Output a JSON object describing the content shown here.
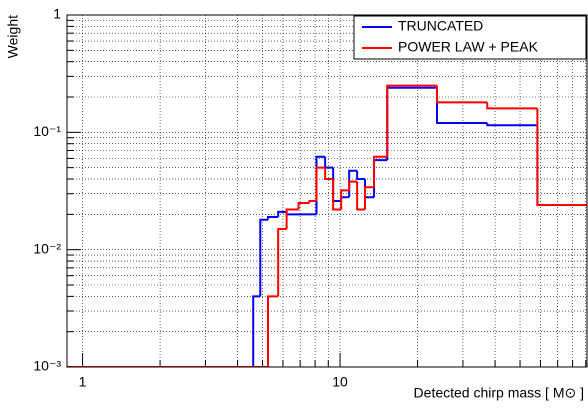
{
  "chart_data": {
    "type": "histogram",
    "log_x": true,
    "log_y": true,
    "grid": true,
    "legend": "top-right",
    "x_label": "Detected chirp mass [ M⊙ ]",
    "y_label": "Weight",
    "bins": [
      0.87,
      4.6,
      4.9,
      5.25,
      5.75,
      6.2,
      6.9,
      7.6,
      8.1,
      8.75,
      9.4,
      10.1,
      10.85,
      11.65,
      12.5,
      13.55,
      15.25,
      23.8,
      37.3,
      58.4,
      91
    ],
    "series": [
      {
        "name": "TRUNCATED",
        "color": "#0000ff",
        "values": [
          0.001,
          0.004,
          0.018,
          0.019,
          0.021,
          0.02,
          0.02,
          0.02,
          0.062,
          0.05,
          0.026,
          0.028,
          0.047,
          0.04,
          0.028,
          0.058,
          0.24,
          0.12,
          0.115,
          0.024
        ]
      },
      {
        "name": "POWER LAW + PEAK",
        "color": "#ff0000",
        "values": [
          0.001,
          0.001,
          0.001,
          0.004,
          0.015,
          0.022,
          0.025,
          0.026,
          0.05,
          0.04,
          0.022,
          0.032,
          0.038,
          0.022,
          0.034,
          0.062,
          0.25,
          0.18,
          0.16,
          0.024
        ]
      }
    ],
    "xlim": [
      0.87,
      91
    ],
    "ylim": [
      0.001,
      1
    ],
    "xticks": [
      1,
      10
    ],
    "xminor_ticks": [
      2,
      3,
      4,
      5,
      6,
      7,
      8,
      9,
      20,
      30,
      40,
      50,
      60,
      70,
      80,
      90
    ],
    "yticks": [
      {
        "value": 0.001,
        "label": "10⁻³"
      },
      {
        "value": 0.01,
        "label": "10⁻²"
      },
      {
        "value": 0.1,
        "label": "10⁻¹"
      },
      1
    ],
    "yminor_ticks": [
      0.002,
      0.003,
      0.004,
      0.005,
      0.006,
      0.007,
      0.008,
      0.009,
      0.02,
      0.03,
      0.04,
      0.05,
      0.06,
      0.07,
      0.08,
      0.09,
      0.2,
      0.3,
      0.4,
      0.5,
      0.6,
      0.7,
      0.8,
      0.9
    ]
  }
}
